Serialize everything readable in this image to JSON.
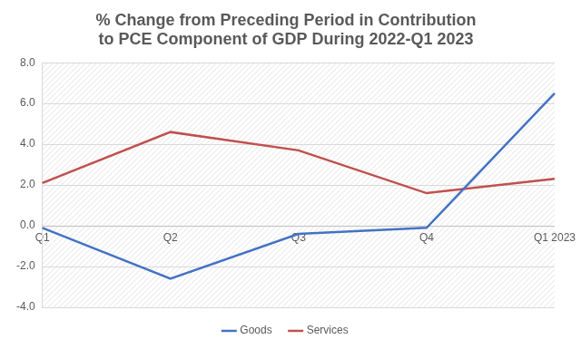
{
  "chart_data": {
    "type": "line",
    "title": [
      "% Change from Preceding Period in Contribution",
      "to PCE Component of GDP During 2022-Q1 2023"
    ],
    "categories": [
      "Q1",
      "Q2",
      "Q3",
      "Q4",
      "Q1 2023"
    ],
    "series": [
      {
        "name": "Goods",
        "color": "#4472c4",
        "values": [
          -0.1,
          -2.6,
          -0.4,
          -0.1,
          6.5
        ]
      },
      {
        "name": "Services",
        "color": "#c0504d",
        "values": [
          2.1,
          4.6,
          3.7,
          1.6,
          2.3
        ]
      }
    ],
    "ylim": [
      -4,
      8
    ],
    "yticks": [
      {
        "value": -4,
        "label": "-4.0"
      },
      {
        "value": -2,
        "label": "-2.0"
      },
      {
        "value": 0,
        "label": "0.0"
      },
      {
        "value": 2,
        "label": "2.0"
      },
      {
        "value": 4,
        "label": "4.0"
      },
      {
        "value": 6,
        "label": "6.0"
      },
      {
        "value": 8,
        "label": "8.0"
      }
    ],
    "grid": true,
    "legend": "bottom"
  }
}
